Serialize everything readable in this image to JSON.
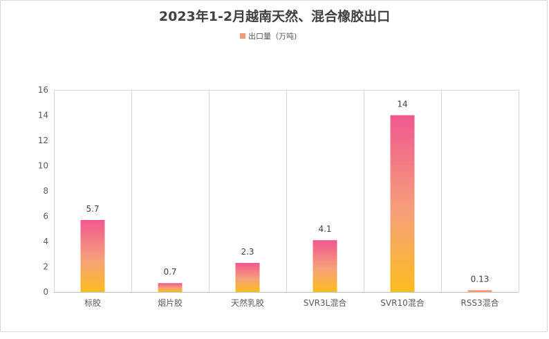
{
  "chart_data": {
    "type": "bar",
    "title": "2023年1-2月越南天然、混合橡胶出口",
    "categories": [
      "标胶",
      "烟片胶",
      "天然乳胶",
      "SVR3L混合",
      "SVR10混合",
      "RSS3混合"
    ],
    "series": [
      {
        "name": "出口量（万吨)",
        "values": [
          5.7,
          0.7,
          2.3,
          4.1,
          14,
          0.13
        ],
        "labels": [
          "5.7",
          "0.7",
          "2.3",
          "4.1",
          "14",
          "0.13"
        ]
      }
    ],
    "ylim": [
      0,
      16
    ],
    "yticks": [
      "0",
      "2",
      "4",
      "6",
      "8",
      "10",
      "12",
      "14",
      "16"
    ],
    "grid": "vertical-category-separators",
    "legend_position": "top-center",
    "colors": {
      "bar_top": "#f0588f",
      "bar_mid": "#f6a07a",
      "bar_bottom": "#fbbd1e",
      "legend_swatch": "#f39a7b",
      "grid": "#d9d9d9",
      "axis": "#bfbfbf"
    }
  }
}
